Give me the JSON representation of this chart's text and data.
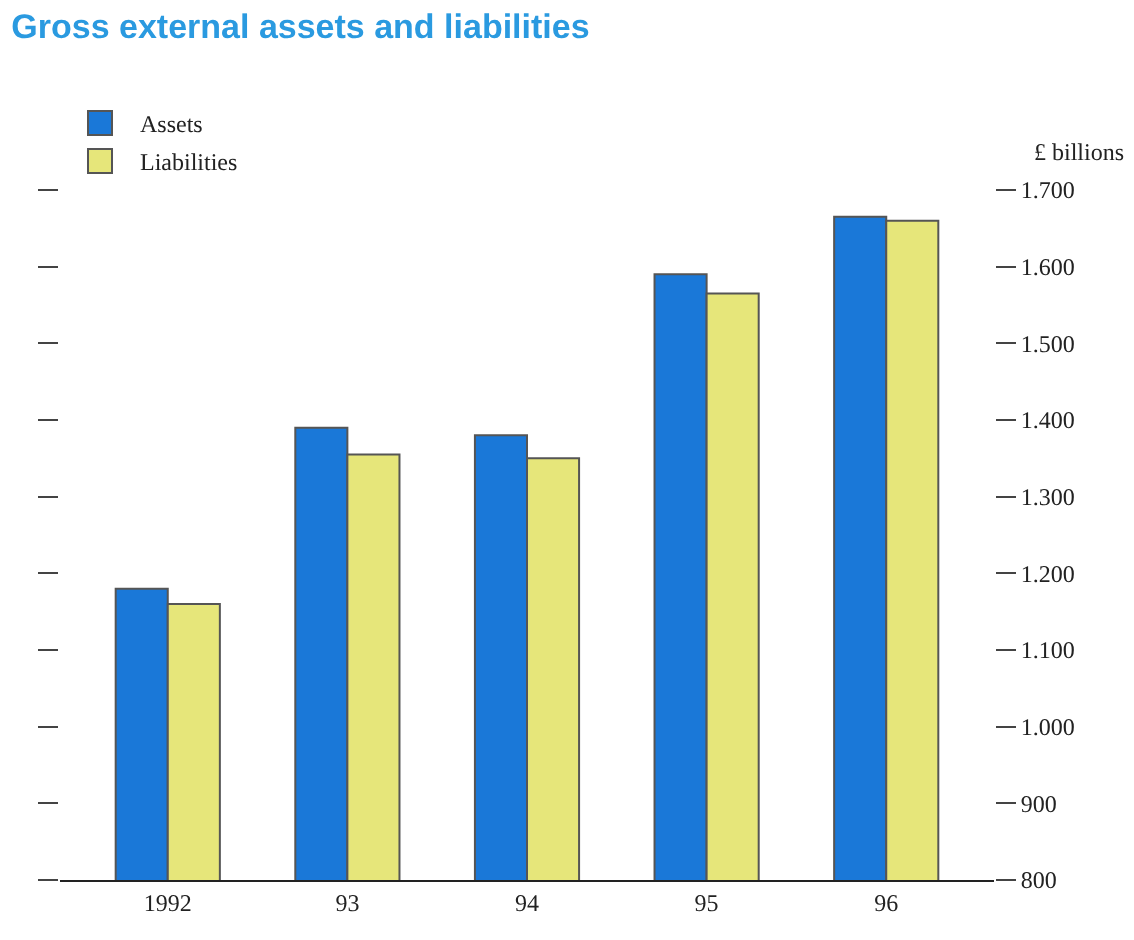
{
  "chart_data": {
    "type": "bar",
    "title": "Gross external assets and liabilities",
    "ylabel": "£ billions",
    "categories": [
      "1992",
      "93",
      "94",
      "95",
      "96"
    ],
    "series": [
      {
        "name": "Assets",
        "color": "#1a78d8",
        "values": [
          1180,
          1390,
          1380,
          1590,
          1665
        ]
      },
      {
        "name": "Liabilities",
        "color": "#e6e67a",
        "values": [
          1160,
          1355,
          1350,
          1565,
          1660
        ]
      }
    ],
    "ylim": [
      800,
      1700
    ],
    "yticks": [
      800,
      900,
      {
        "value": 1000,
        "label": "1.000"
      },
      {
        "value": 1100,
        "label": "1.100"
      },
      {
        "value": 1200,
        "label": "1.200"
      },
      {
        "value": 1300,
        "label": "1.300"
      },
      {
        "value": 1400,
        "label": "1.400"
      },
      {
        "value": 1500,
        "label": "1.500"
      },
      {
        "value": 1600,
        "label": "1.600"
      },
      {
        "value": 1700,
        "label": "1.700"
      }
    ],
    "legend": "top left"
  }
}
